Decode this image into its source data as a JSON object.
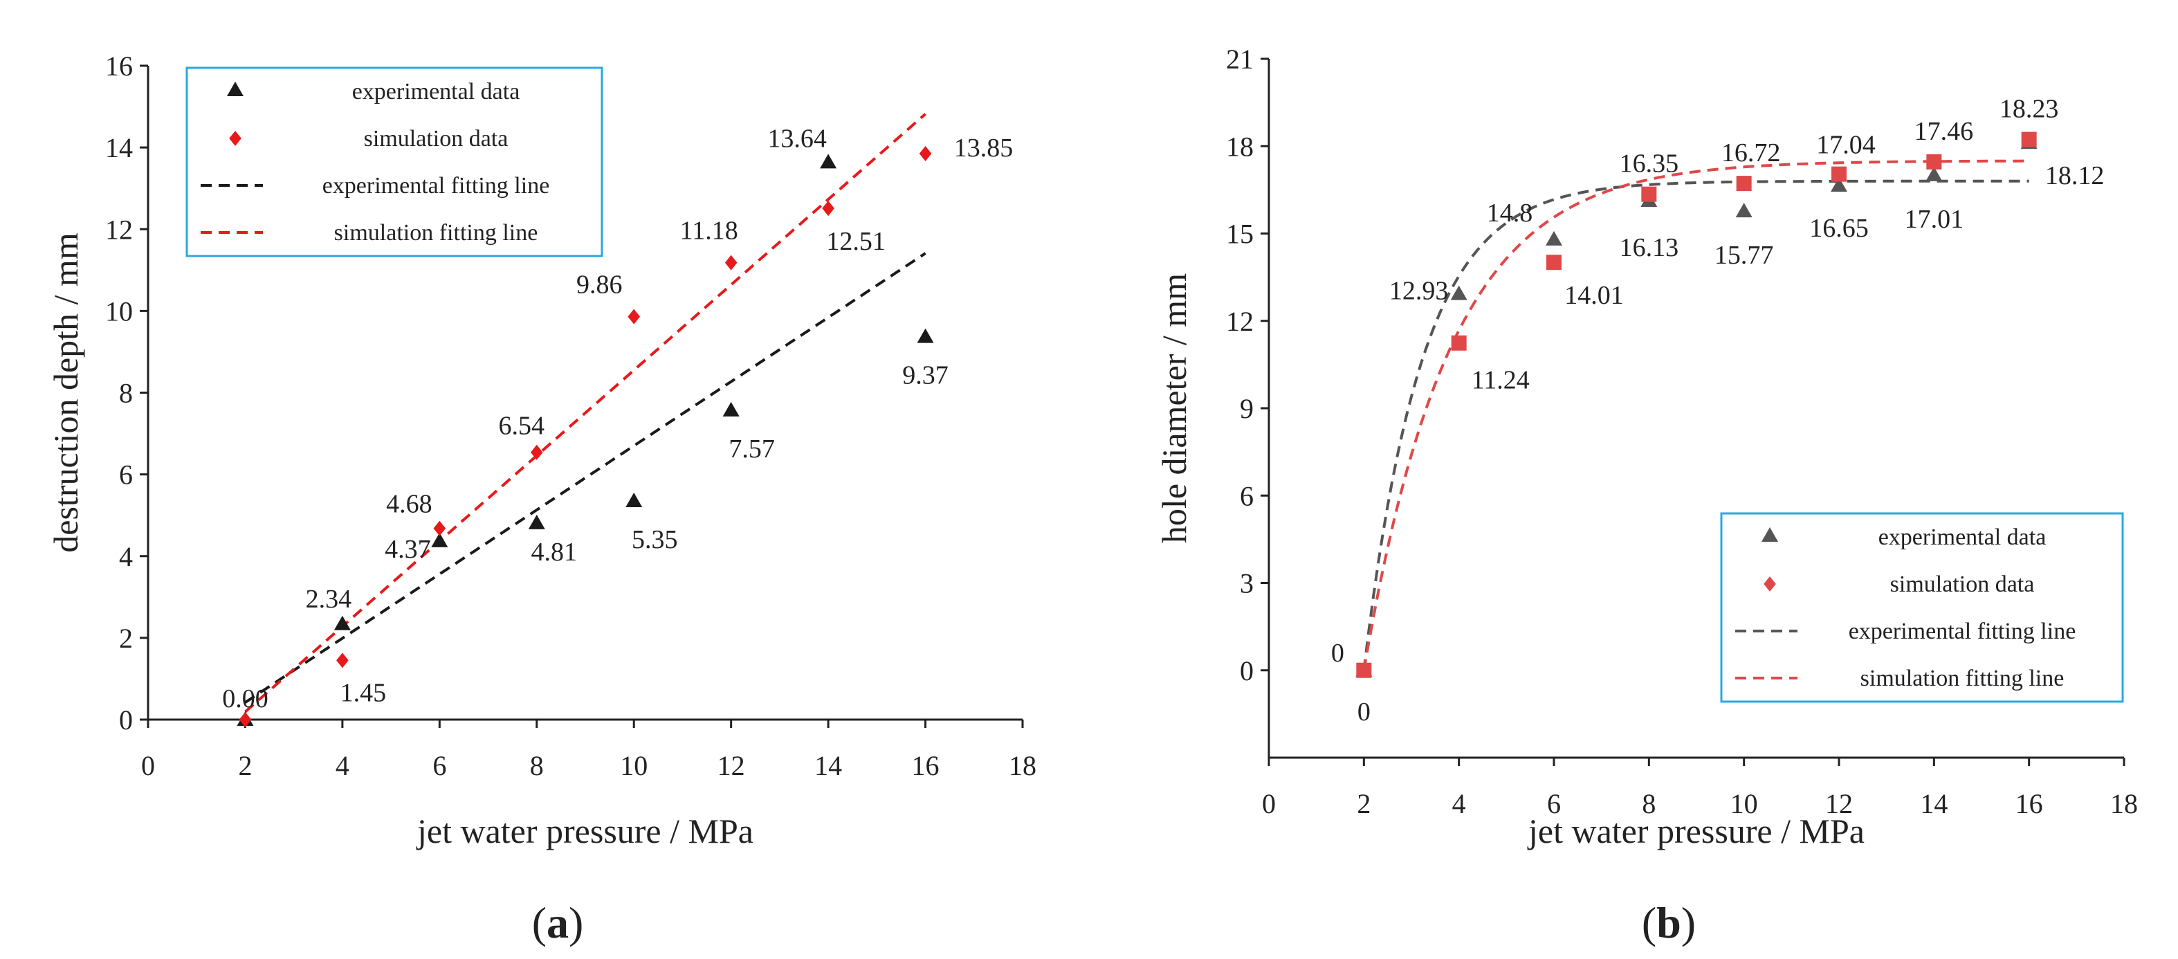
{
  "colors": {
    "experimental": "#1a1a1a",
    "experimental_b": "#555555",
    "simulation": "#e8191b",
    "simulation_b": "#e04848",
    "legend_border": "#29a8e0",
    "axis": "#222222"
  },
  "chart_data": [
    {
      "id": "a",
      "type": "scatter",
      "caption_open": "(",
      "caption_letter": "a",
      "caption_close": ")",
      "xlabel": "jet water pressure / MPa",
      "ylabel": "destruction depth / mm",
      "xlim": [
        0,
        18
      ],
      "ylim": [
        0,
        16
      ],
      "xticks": [
        0,
        2,
        4,
        6,
        8,
        10,
        12,
        14,
        16,
        18
      ],
      "yticks": [
        0,
        2,
        4,
        6,
        8,
        10,
        12,
        14,
        16
      ],
      "legend": {
        "position": "top-left",
        "entries": [
          "experimental data",
          "simulation data",
          "experimental fitting line",
          "simulation fitting line"
        ]
      },
      "series": [
        {
          "name": "experimental data",
          "marker": "triangle",
          "x": [
            2,
            4,
            6,
            8,
            10,
            12,
            14,
            16
          ],
          "y": [
            0.0,
            2.34,
            4.37,
            4.81,
            5.35,
            7.57,
            13.64,
            9.37
          ],
          "labels": [
            "0.00",
            "2.34",
            "4.37",
            "4.81",
            "5.35",
            "7.57",
            "13.64",
            "9.37"
          ]
        },
        {
          "name": "simulation data",
          "marker": "diamond",
          "x": [
            2,
            4,
            6,
            8,
            10,
            12,
            14,
            16
          ],
          "y": [
            0,
            1.45,
            4.68,
            6.54,
            9.86,
            11.18,
            12.51,
            13.85
          ],
          "labels": [
            "",
            "1.45",
            "4.68",
            "6.54",
            "9.86",
            "11.18",
            "12.51",
            "13.85"
          ]
        }
      ],
      "fits": [
        {
          "name": "experimental fitting line",
          "kind": "linear",
          "slope": 0.785,
          "intercept": -1.15,
          "x_range": [
            2,
            16
          ]
        },
        {
          "name": "simulation fitting line",
          "kind": "linear",
          "slope": 1.045,
          "intercept": -1.9,
          "x_range": [
            2,
            16
          ]
        }
      ]
    },
    {
      "id": "b",
      "type": "scatter",
      "caption_open": "(",
      "caption_letter": "b",
      "caption_close": ")",
      "xlabel": "jet water pressure / MPa",
      "ylabel": "hole diameter / mm",
      "xlim": [
        0,
        18
      ],
      "ylim": [
        -3,
        21
      ],
      "xticks": [
        0,
        2,
        4,
        6,
        8,
        10,
        12,
        14,
        16,
        18
      ],
      "yticks": [
        0,
        3,
        6,
        9,
        12,
        15,
        18,
        21
      ],
      "legend": {
        "position": "bottom-right",
        "entries": [
          "experimental data",
          "simulation data",
          "experimental fitting line",
          "simulation fitting line"
        ]
      },
      "series": [
        {
          "name": "experimental data",
          "marker": "triangle",
          "x": [
            2,
            4,
            6,
            8,
            10,
            12,
            14,
            16
          ],
          "y": [
            0,
            12.93,
            14.8,
            16.13,
            15.77,
            16.65,
            17.01,
            18.12
          ],
          "labels": [
            "0",
            "12.93",
            "14.8",
            "16.13",
            "15.77",
            "16.65",
            "17.01",
            "18.12"
          ]
        },
        {
          "name": "simulation data",
          "marker": "square",
          "x": [
            2,
            4,
            6,
            8,
            10,
            12,
            14,
            16
          ],
          "y": [
            0,
            11.24,
            14.01,
            16.35,
            16.72,
            17.04,
            17.46,
            18.23
          ],
          "labels": [
            "0",
            "11.24",
            "14.01",
            "16.35",
            "16.72",
            "17.04",
            "17.46",
            "18.23"
          ]
        }
      ],
      "fits": [
        {
          "name": "experimental fitting line",
          "kind": "exp",
          "a": 16.8,
          "k": 0.82,
          "x0": 2,
          "x_range": [
            2,
            16
          ]
        },
        {
          "name": "simulation fitting line",
          "kind": "exp",
          "a": 17.5,
          "k": 0.55,
          "x0": 2,
          "x_range": [
            2,
            16
          ]
        }
      ]
    }
  ]
}
